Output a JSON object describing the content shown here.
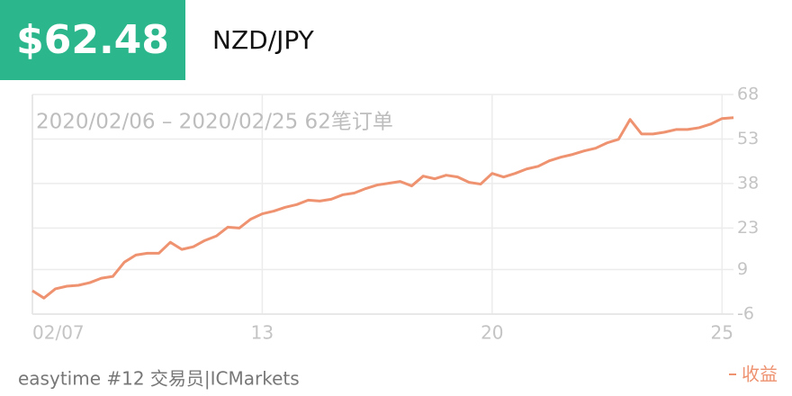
{
  "header": {
    "price": "$62.48",
    "pair": "NZD/JPY"
  },
  "chart_data": {
    "type": "line",
    "annotation": "2020/02/06 – 2020/02/25 62笔订单",
    "x": [
      0,
      1,
      2,
      3,
      4,
      5,
      6,
      7,
      8,
      9,
      10,
      11,
      12,
      13,
      14,
      15,
      16,
      17,
      18,
      19,
      20,
      21,
      22,
      23,
      24,
      25,
      26,
      27,
      28,
      29,
      30,
      31,
      32,
      33,
      34,
      35,
      36,
      37,
      38,
      39,
      40,
      41,
      42,
      43,
      44,
      45,
      46,
      47,
      48,
      49,
      50,
      51,
      52,
      53,
      54,
      55,
      56,
      57,
      58,
      59,
      60,
      61
    ],
    "series": [
      {
        "name": "收益",
        "color": "#ee9270",
        "values": [
          1.9,
          -0.6,
          2.5,
          3.4,
          3.7,
          4.6,
          6.1,
          6.7,
          11.5,
          13.9,
          14.5,
          14.5,
          18.2,
          15.8,
          16.7,
          18.8,
          20.3,
          23.3,
          23.0,
          26.0,
          27.8,
          28.7,
          30.0,
          30.9,
          32.4,
          32.1,
          32.7,
          34.2,
          34.8,
          36.3,
          37.5,
          38.1,
          38.7,
          37.2,
          40.5,
          39.6,
          40.8,
          40.2,
          38.4,
          37.8,
          41.4,
          40.2,
          41.4,
          42.9,
          43.8,
          45.7,
          46.9,
          47.8,
          49.0,
          49.9,
          51.7,
          52.9,
          59.6,
          54.7,
          54.7,
          55.3,
          56.2,
          56.2,
          56.8,
          58.0,
          59.9,
          60.2
        ]
      }
    ],
    "xlim": [
      0,
      61
    ],
    "xticks": [
      {
        "value": 0,
        "label": "02/07"
      },
      {
        "value": 20,
        "label": "13"
      },
      {
        "value": 40,
        "label": "20"
      },
      {
        "value": 60,
        "label": "25"
      }
    ],
    "ylim": [
      -6,
      68
    ],
    "yticks": [
      -6,
      9,
      23,
      38,
      53,
      68
    ],
    "grid": true
  },
  "footer": {
    "text": "easytime #12 交易员|ICMarkets"
  }
}
